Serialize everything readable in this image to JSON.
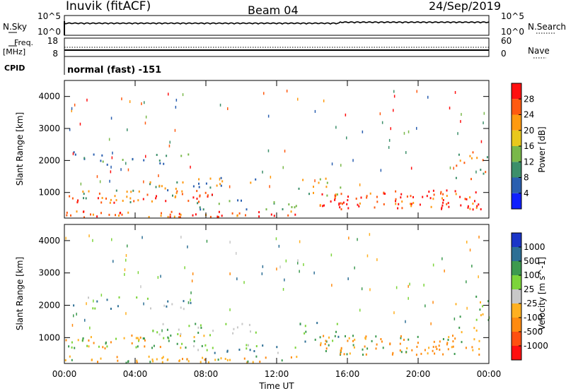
{
  "header": {
    "station": "Inuvik (fitACF)",
    "beam": "Beam 04",
    "date": "24/Sep/2019"
  },
  "noise_panel": {
    "left_label": "N.Sky",
    "right_label": "N.Search",
    "left_ticks": [
      "10^5",
      "10^0"
    ],
    "right_ticks": [
      "10^5",
      "10^0"
    ]
  },
  "freq_panel": {
    "left_label_1": "Freq.",
    "left_label_2": "[MHz]",
    "left_ticks": [
      "18",
      "8"
    ],
    "right_label": "Nave",
    "right_ticks": [
      "60",
      "0"
    ]
  },
  "cpid": {
    "label": "CPID",
    "mode": "normal (fast) -151"
  },
  "chart_data": [
    {
      "type": "heatmap",
      "title": "",
      "ylabel": "Slant Range [km]",
      "xlabel": "",
      "yticks": [
        "1000",
        "2000",
        "3000",
        "4000"
      ],
      "ylim": [
        200,
        4500
      ],
      "colorbar_label": "Power [dB]",
      "colorbar_ticks": [
        "4",
        "8",
        "12",
        "16",
        "20",
        "24",
        "28"
      ],
      "colorbar_colors": [
        "#1020ff",
        "#2a5fb0",
        "#3c8f6a",
        "#79b84a",
        "#e8c81c",
        "#ff9a10",
        "#ff5a10",
        "#ff1010"
      ]
    },
    {
      "type": "heatmap",
      "title": "",
      "ylabel": "Slant Range [km]",
      "xlabel": "Time UT",
      "xticks": [
        "00:00",
        "04:00",
        "08:00",
        "12:00",
        "16:00",
        "20:00",
        "00:00"
      ],
      "yticks": [
        "1000",
        "2000",
        "3000",
        "4000"
      ],
      "ylim": [
        200,
        4500
      ],
      "colorbar_label": "Velocity [m s^-1]",
      "colorbar_ticks": [
        "1000",
        "500",
        "100",
        "25",
        "-25",
        "-100",
        "-500",
        "-1000"
      ],
      "colorbar_colors": [
        "#1a35c8",
        "#2d6f95",
        "#3d9a4f",
        "#7cd43a",
        "#c8c8c8",
        "#ffb020",
        "#ff8a10",
        "#ff5010",
        "#ff1010"
      ]
    }
  ]
}
